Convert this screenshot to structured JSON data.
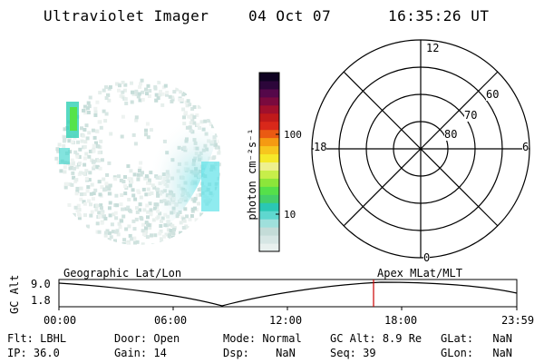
{
  "header": {
    "instrument": "Ultraviolet Imager",
    "date": "04 Oct 07",
    "time": "16:35:26 UT"
  },
  "colorbar": {
    "unit_label": "photon cm⁻²s⁻¹",
    "ticks": [
      "100",
      "10"
    ],
    "colors": [
      "#e8f0ee",
      "#d6e6e4",
      "#c4dcd8",
      "#9fe0dc",
      "#5fd7cf",
      "#2bc7b4",
      "#44cf6a",
      "#55e04a",
      "#8ce63a",
      "#c7ee4a",
      "#eef08e",
      "#f5e92a",
      "#f7c61e",
      "#f59a12",
      "#ea5a12",
      "#d9281a",
      "#c01a1a",
      "#a1102c",
      "#7a0a3e",
      "#55084a",
      "#2c063a",
      "#100322"
    ]
  },
  "polar_plot": {
    "mlt_labels": {
      "top": "12",
      "left": "18",
      "right": "6",
      "bottom": "0"
    },
    "lat_labels": [
      "60",
      "70",
      "80"
    ]
  },
  "timeline": {
    "left_title": "Geographic Lat/Lon",
    "right_title": "Apex MLat/MLT",
    "y_axis_label": "GC Alt",
    "y_ticks": [
      "9.0",
      "1.8"
    ],
    "x_ticks": [
      "00:00",
      "06:00",
      "12:00",
      "18:00",
      "23:59"
    ],
    "marker_color": "#cc0000"
  },
  "status": {
    "flt_label": "Flt:",
    "flt_value": "LBHL",
    "ip_label": "IP:",
    "ip_value": "36.0",
    "door_label": "Door:",
    "door_value": "Open",
    "gain_label": "Gain:",
    "gain_value": "14",
    "mode_label": "Mode:",
    "mode_value": "Normal",
    "dsp_label": "Dsp:",
    "dsp_value": "NaN",
    "gcalt_label": "GC Alt:",
    "gcalt_value": "8.9 Re",
    "seq_label": "Seq:",
    "seq_value": "39",
    "glat_label": "GLat:",
    "glat_value": "NaN",
    "glon_label": "GLon:",
    "glon_value": "NaN"
  }
}
